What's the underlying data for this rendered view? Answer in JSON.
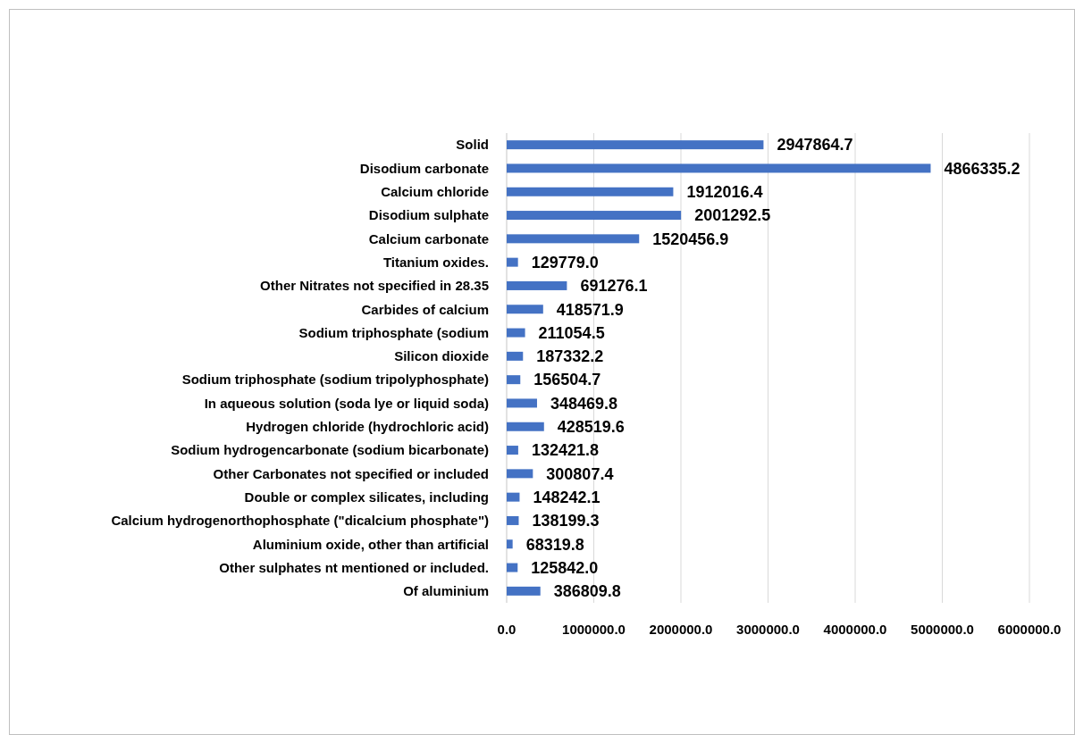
{
  "chart_data": {
    "type": "bar",
    "orientation": "horizontal",
    "categories": [
      "Solid",
      "Disodium carbonate",
      "Calcium chloride",
      "Disodium sulphate",
      "Calcium carbonate",
      "Titanium oxides.",
      "Other Nitrates not specified in 28.35",
      "Carbides of calcium",
      "Sodium triphosphate (sodium",
      "Silicon dioxide",
      "Sodium triphosphate (sodium tripolyphosphate)",
      "In aqueous solution (soda lye or liquid soda)",
      "Hydrogen chloride (hydrochloric acid)",
      "Sodium hydrogencarbonate (sodium bicarbonate)",
      "Other Carbonates not specified or included",
      "Double or complex silicates, including",
      "Calcium hydrogenorthophosphate (\"dicalcium phosphate\")",
      "Aluminium oxide, other than artificial",
      "Other sulphates nt mentioned or included.",
      "Of aluminium"
    ],
    "values": [
      2947864.7,
      4866335.2,
      1912016.4,
      2001292.5,
      1520456.9,
      129779.0,
      691276.1,
      418571.9,
      211054.5,
      187332.2,
      156504.7,
      348469.8,
      428519.6,
      132421.8,
      300807.4,
      148242.1,
      138199.3,
      68319.8,
      125842.0,
      386809.8
    ],
    "value_labels": [
      "2947864.7",
      "4866335.2",
      "1912016.4",
      "2001292.5",
      "1520456.9",
      "129779.0",
      "691276.1",
      "418571.9",
      "211054.5",
      "187332.2",
      "156504.7",
      "348469.8",
      "428519.6",
      "132421.8",
      "300807.4",
      "148242.1",
      "138199.3",
      "68319.8",
      "125842.0",
      "386809.8"
    ],
    "color": "#4472c4",
    "xlim": [
      0,
      6000000
    ],
    "xticks": [
      {
        "value": 0,
        "label": "0.0"
      },
      {
        "value": 1000000,
        "label": "1000000.0"
      },
      {
        "value": 2000000,
        "label": "2000000.0"
      },
      {
        "value": 3000000,
        "label": "3000000.0"
      },
      {
        "value": 4000000,
        "label": "4000000.0"
      },
      {
        "value": 5000000,
        "label": "5000000.0"
      },
      {
        "value": 6000000,
        "label": "6000000.0"
      }
    ],
    "grid": "x"
  }
}
